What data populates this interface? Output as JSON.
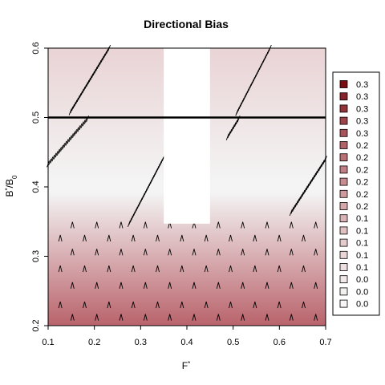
{
  "chart_data": {
    "type": "heatmap",
    "title": "Directional Bias",
    "xlabel": "F*",
    "ylabel": "B*/B0",
    "xlim": [
      0.1,
      0.7
    ],
    "ylim": [
      0.2,
      0.6
    ],
    "x_ticks": [
      "0.1",
      "0.2",
      "0.3",
      "0.4",
      "0.5",
      "0.6",
      "0.7"
    ],
    "y_ticks": [
      "0.2",
      "0.3",
      "0.4",
      "0.5",
      "0.6"
    ],
    "reference_line_y": 0.5,
    "masked_region": {
      "x": [
        0.35,
        0.45
      ],
      "y_from": 0.347
    },
    "gradient": {
      "low_color": "#b9636b",
      "mid_color": "#f4f4f4",
      "high_color": "#e9d3d5",
      "white_level": 0.48
    },
    "legend": {
      "placement": "right",
      "entries": [
        {
          "label": "0.3",
          "color": "#7a0c12"
        },
        {
          "label": "0.3",
          "color": "#88222a"
        },
        {
          "label": "0.3",
          "color": "#933338"
        },
        {
          "label": "0.3",
          "color": "#9e4449"
        },
        {
          "label": "0.3",
          "color": "#a85359"
        },
        {
          "label": "0.2",
          "color": "#b16267"
        },
        {
          "label": "0.2",
          "color": "#b97076"
        },
        {
          "label": "0.2",
          "color": "#c17e84"
        },
        {
          "label": "0.2",
          "color": "#c88c91"
        },
        {
          "label": "0.2",
          "color": "#cf999e"
        },
        {
          "label": "0.2",
          "color": "#d5a6aa"
        },
        {
          "label": "0.1",
          "color": "#dbb3b6"
        },
        {
          "label": "0.1",
          "color": "#e1c0c2"
        },
        {
          "label": "0.1",
          "color": "#e6cccd"
        },
        {
          "label": "0.1",
          "color": "#ead6d7"
        },
        {
          "label": "0.1",
          "color": "#eee0e1"
        },
        {
          "label": "0.0",
          "color": "#f2e9ea"
        },
        {
          "label": "0.0",
          "color": "#f5f0f0"
        },
        {
          "label": "0.0",
          "color": "#f8f6f6"
        }
      ]
    },
    "lower_arrows": {
      "x_start": 0.1,
      "x_step": 0.0526,
      "rows": [
        {
          "y": 0.212,
          "phase": 0
        },
        {
          "y": 0.23,
          "phase": 0.5
        },
        {
          "y": 0.258,
          "phase": 0
        },
        {
          "y": 0.282,
          "phase": 0.5
        },
        {
          "y": 0.306,
          "phase": 0
        },
        {
          "y": 0.326,
          "phase": 0.5
        },
        {
          "y": 0.345,
          "phase": 0
        }
      ]
    },
    "streaks": [
      {
        "x": [
          0.148,
          0.232
        ],
        "y": [
          0.508,
          0.6
        ]
      },
      {
        "x": [
          0.1,
          0.185
        ],
        "y": [
          0.433,
          0.498
        ]
      },
      {
        "x": [
          0.275,
          0.352
        ],
        "y": [
          0.347,
          0.445
        ]
      },
      {
        "x": [
          0.508,
          0.58
        ],
        "y": [
          0.507,
          0.6
        ]
      },
      {
        "x": [
          0.488,
          0.512
        ],
        "y": [
          0.472,
          0.498
        ]
      },
      {
        "x": [
          0.625,
          0.7
        ],
        "y": [
          0.363,
          0.44
        ]
      }
    ]
  }
}
